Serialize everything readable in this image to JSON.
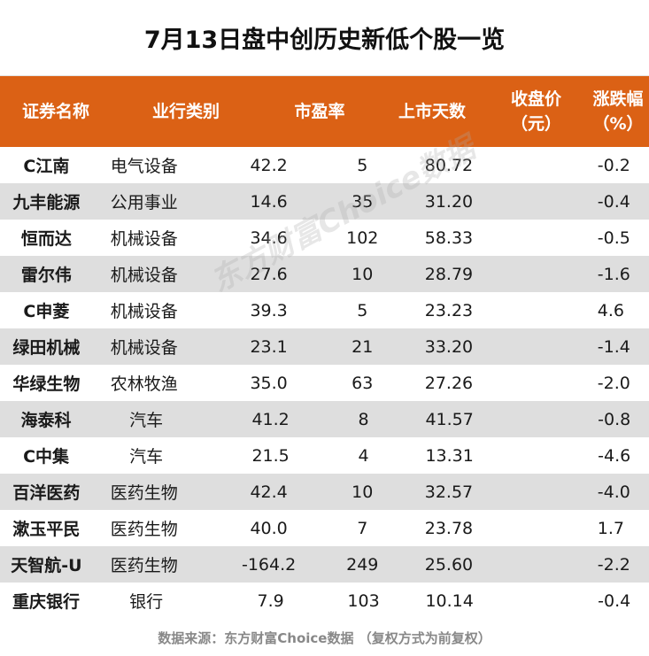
{
  "title": "7月13日盘中创历史新低个股一览",
  "header": {
    "name": "证券名称",
    "industry": "业行类别",
    "pe": "市盈率",
    "days": "上市天数",
    "price_line1": "收盘价",
    "price_line2": "（元）",
    "change_line1": "涨跌幅",
    "change_line2": "（%）"
  },
  "rows": [
    {
      "name": "C江南",
      "industry": "电气设备",
      "pe": "42.2",
      "days": "5",
      "price": "80.72",
      "change": "-0.2"
    },
    {
      "name": "九丰能源",
      "industry": "公用事业",
      "pe": "14.6",
      "days": "35",
      "price": "31.20",
      "change": "-0.4"
    },
    {
      "name": "恒而达",
      "industry": "机械设备",
      "pe": "34.6",
      "days": "102",
      "price": "58.33",
      "change": "-0.5"
    },
    {
      "name": "雷尔伟",
      "industry": "机械设备",
      "pe": "27.6",
      "days": "10",
      "price": "28.79",
      "change": "-1.6"
    },
    {
      "name": "C申菱",
      "industry": "机械设备",
      "pe": "39.3",
      "days": "5",
      "price": "23.23",
      "change": "4.6"
    },
    {
      "name": "绿田机械",
      "industry": "机械设备",
      "pe": "23.1",
      "days": "21",
      "price": "33.20",
      "change": "-1.4"
    },
    {
      "name": "华绿生物",
      "industry": "农林牧渔",
      "pe": "35.0",
      "days": "63",
      "price": "27.26",
      "change": "-2.0"
    },
    {
      "name": "海泰科",
      "industry": "汽车",
      "pe": "41.2",
      "days": "8",
      "price": "41.57",
      "change": "-0.8"
    },
    {
      "name": "C中集",
      "industry": "汽车",
      "pe": "21.5",
      "days": "4",
      "price": "13.31",
      "change": "-4.6"
    },
    {
      "name": "百洋医药",
      "industry": "医药生物",
      "pe": "42.4",
      "days": "10",
      "price": "32.57",
      "change": "-4.0"
    },
    {
      "name": "漱玉平民",
      "industry": "医药生物",
      "pe": "40.0",
      "days": "7",
      "price": "23.78",
      "change": "1.7"
    },
    {
      "name": "天智航-U",
      "industry": "医药生物",
      "pe": "-164.2",
      "days": "249",
      "price": "25.60",
      "change": "-2.2"
    },
    {
      "name": "重庆银行",
      "industry": "银行",
      "pe": "7.9",
      "days": "103",
      "price": "10.14",
      "change": "-0.4"
    }
  ],
  "watermark": "东方财富Choice数据",
  "footer": "数据来源：东方财富Choice数据 （复权方式为前复权）"
}
